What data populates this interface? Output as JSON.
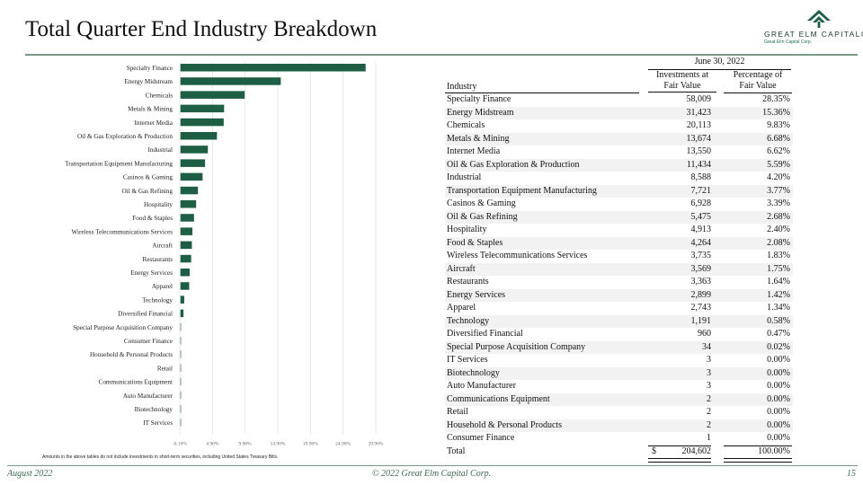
{
  "page_title": "Total Quarter End Industry Breakdown",
  "logo": {
    "name": "GREAT ELM CAPITAL",
    "mark": "®",
    "sub": "Great Elm Capital Corp."
  },
  "chart_data": {
    "type": "bar",
    "orientation": "horizontal",
    "categories": [
      "Specialty Finance",
      "Energy Midstream",
      "Chemicals",
      "Metals & Mining",
      "Internet Media",
      "Oil & Gas Exploration & Production",
      "Industrial",
      "Transportation Equipment Manufacturing",
      "Casinos & Gaming",
      "Oil & Gas Refining",
      "Hospitality",
      "Food & Staples",
      "Wireless Telecommunications Services",
      "Aircraft",
      "Restaurants",
      "Energy Services",
      "Apparel",
      "Technology",
      "Diversified Financial",
      "Special Purpose Acquisition Company",
      "Consumer Finance",
      "Household & Personal Products",
      "Retail",
      "Communications Equipment",
      "Auto Manufacturer",
      "Biotechnology",
      "IT Services"
    ],
    "values": [
      28.35,
      15.36,
      9.83,
      6.68,
      6.62,
      5.59,
      4.2,
      3.77,
      3.39,
      2.68,
      2.4,
      2.08,
      1.83,
      1.75,
      1.64,
      1.42,
      1.34,
      0.58,
      0.47,
      0.02,
      0.0,
      0.0,
      0.0,
      0.0,
      0.0,
      0.0,
      0.0
    ],
    "xlim": [
      -0.1,
      29.9
    ],
    "xticks": [
      "-0.10%",
      "4.90%",
      "9.90%",
      "14.90%",
      "19.90%",
      "24.90%",
      "29.90%"
    ],
    "bar_color": "#1e5e45"
  },
  "footnote": "Amounts in the above tables do not include investments in short-term securities, including United States Treasury Bills.",
  "table": {
    "period": "June 30, 2022",
    "col_industry": "Industry",
    "col_investments": [
      "Investments at",
      "Fair Value"
    ],
    "col_percentage": [
      "Percentage of",
      "Fair Value"
    ],
    "rows": [
      {
        "industry": "Specialty Finance",
        "value": "58,009",
        "pct": "28.35%"
      },
      {
        "industry": "Energy Midstream",
        "value": "31,423",
        "pct": "15.36%"
      },
      {
        "industry": "Chemicals",
        "value": "20,113",
        "pct": "9.83%"
      },
      {
        "industry": "Metals & Mining",
        "value": "13,674",
        "pct": "6.68%"
      },
      {
        "industry": "Internet Media",
        "value": "13,550",
        "pct": "6.62%"
      },
      {
        "industry": "Oil & Gas Exploration & Production",
        "value": "11,434",
        "pct": "5.59%"
      },
      {
        "industry": "Industrial",
        "value": "8,588",
        "pct": "4.20%"
      },
      {
        "industry": "Transportation Equipment Manufacturing",
        "value": "7,721",
        "pct": "3.77%"
      },
      {
        "industry": "Casinos & Gaming",
        "value": "6,928",
        "pct": "3.39%"
      },
      {
        "industry": "Oil & Gas Refining",
        "value": "5,475",
        "pct": "2.68%"
      },
      {
        "industry": "Hospitality",
        "value": "4,913",
        "pct": "2.40%"
      },
      {
        "industry": "Food & Staples",
        "value": "4,264",
        "pct": "2.08%"
      },
      {
        "industry": "Wireless Telecommunications Services",
        "value": "3,735",
        "pct": "1.83%"
      },
      {
        "industry": "Aircraft",
        "value": "3,569",
        "pct": "1.75%"
      },
      {
        "industry": "Restaurants",
        "value": "3,363",
        "pct": "1.64%"
      },
      {
        "industry": "Energy Services",
        "value": "2,899",
        "pct": "1.42%"
      },
      {
        "industry": "Apparel",
        "value": "2,743",
        "pct": "1.34%"
      },
      {
        "industry": "Technology",
        "value": "1,191",
        "pct": "0.58%"
      },
      {
        "industry": "Diversified Financial",
        "value": "960",
        "pct": "0.47%"
      },
      {
        "industry": "Special Purpose Acquisition Company",
        "value": "34",
        "pct": "0.02%"
      },
      {
        "industry": "IT Services",
        "value": "3",
        "pct": "0.00%"
      },
      {
        "industry": "Biotechnology",
        "value": "3",
        "pct": "0.00%"
      },
      {
        "industry": "Auto Manufacturer",
        "value": "3",
        "pct": "0.00%"
      },
      {
        "industry": "Communications Equipment",
        "value": "2",
        "pct": "0.00%"
      },
      {
        "industry": "Retail",
        "value": "2",
        "pct": "0.00%"
      },
      {
        "industry": "Household & Personal Products",
        "value": "2",
        "pct": "0.00%"
      },
      {
        "industry": "Consumer Finance",
        "value": "1",
        "pct": "0.00%"
      }
    ],
    "total": {
      "label": "Total",
      "currency": "$",
      "value": "204,602",
      "pct": "100.00%"
    }
  },
  "footer": {
    "date": "August 2022",
    "copyright": "© 2022 Great Elm Capital Corp.",
    "page": "15"
  }
}
